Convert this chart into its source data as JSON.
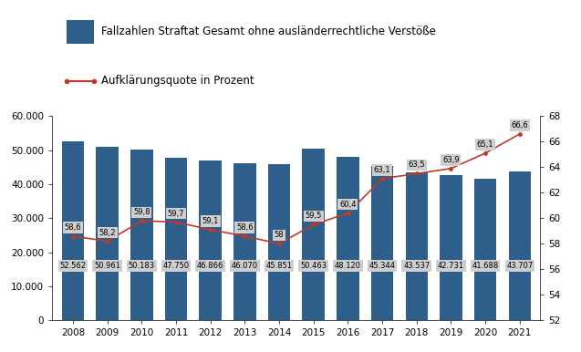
{
  "years": [
    2008,
    2009,
    2010,
    2011,
    2012,
    2013,
    2014,
    2015,
    2016,
    2017,
    2018,
    2019,
    2020,
    2021
  ],
  "bar_values": [
    52562,
    50961,
    50183,
    47750,
    46866,
    46070,
    45851,
    50463,
    48120,
    45344,
    43537,
    42731,
    41688,
    43707
  ],
  "line_values": [
    58.6,
    58.2,
    59.8,
    59.7,
    59.1,
    58.6,
    58.0,
    59.5,
    60.4,
    63.1,
    63.5,
    63.9,
    65.1,
    66.6
  ],
  "bar_labels": [
    "52.562",
    "50.961",
    "50.183",
    "47.750",
    "46.866",
    "46.070",
    "45.851",
    "50.463",
    "48.120",
    "45.344",
    "43.537",
    "42.731",
    "41.688",
    "43.707"
  ],
  "line_labels": [
    "58,6",
    "58,2",
    "59,8",
    "59,7",
    "59,1",
    "58,6",
    "58",
    "59,5",
    "60,4",
    "63,1",
    "63,5",
    "63,9",
    "65,1",
    "66,6"
  ],
  "bar_color": "#2E5F8A",
  "line_color": "#C0392B",
  "label_bg_color": "#CECECE",
  "legend_bar": "Fallzahlen Straftat Gesamt ohne ausländerrechtliche Verstöße",
  "legend_line": "Aufklärungsquote in Prozent",
  "ylim_left": [
    0,
    60000
  ],
  "ylim_right": [
    52,
    68
  ],
  "yticks_left": [
    0,
    10000,
    20000,
    30000,
    40000,
    50000,
    60000
  ],
  "yticks_right": [
    52,
    54,
    56,
    58,
    60,
    62,
    64,
    66,
    68
  ],
  "ytick_labels_left": [
    "0",
    "10.000",
    "20.000",
    "30.000",
    "40.000",
    "50.000",
    "60.000"
  ]
}
